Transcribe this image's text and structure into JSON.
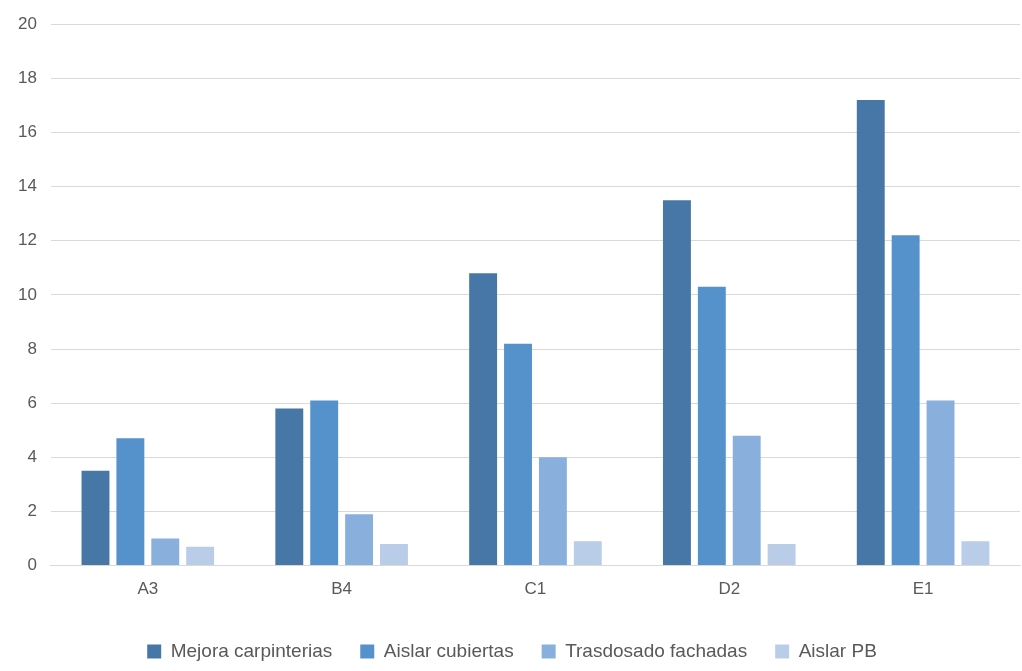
{
  "chart_data": {
    "type": "bar",
    "categories": [
      "A3",
      "B4",
      "C1",
      "D2",
      "E1"
    ],
    "series": [
      {
        "name": "Mejora carpinterias",
        "color": "#4677a6",
        "values": [
          3.5,
          5.8,
          10.8,
          13.5,
          17.2
        ]
      },
      {
        "name": "Aislar cubiertas",
        "color": "#5592cc",
        "values": [
          4.7,
          6.1,
          8.2,
          10.3,
          12.2
        ]
      },
      {
        "name": "Trasdosado fachadas",
        "color": "#89b0dc",
        "values": [
          1.0,
          1.9,
          4.0,
          4.8,
          6.1
        ]
      },
      {
        "name": "Aislar PB",
        "color": "#b9cde8",
        "values": [
          0.7,
          0.8,
          0.9,
          0.8,
          0.9
        ]
      }
    ],
    "ylim": [
      0,
      20
    ],
    "yticks": [
      0,
      2,
      4,
      6,
      8,
      10,
      12,
      14,
      16,
      18,
      20
    ],
    "grid": "y",
    "legend": "bottom"
  }
}
